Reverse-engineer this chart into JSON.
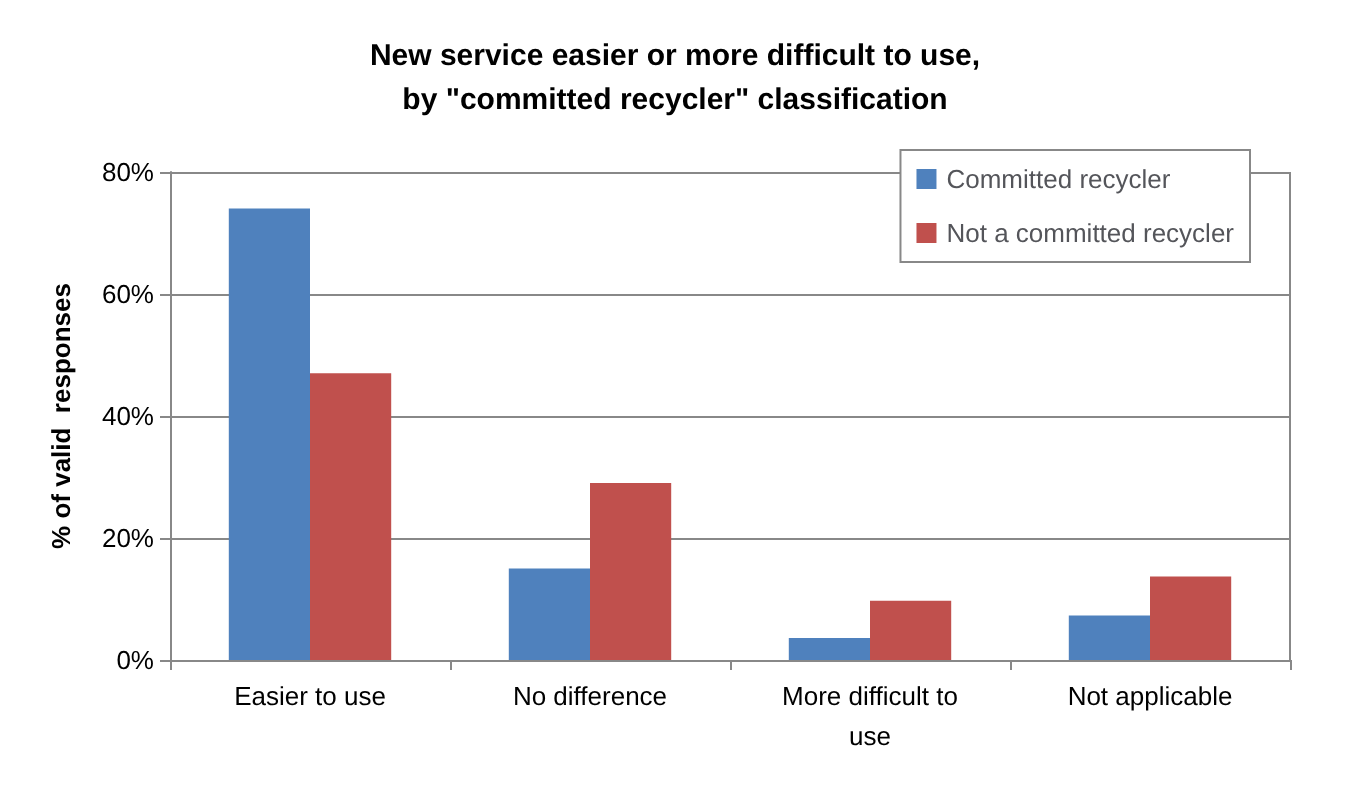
{
  "chart_data": {
    "type": "bar",
    "title": "New service easier or more difficult to use,\nby \"committed recycler\" classification",
    "ylabel": "% of valid  responses",
    "categories": [
      "Easier to use",
      "No difference",
      "More difficult to\nuse",
      "Not applicable"
    ],
    "series": [
      {
        "name": "Committed recycler",
        "color": "#4f81bd",
        "values": [
          74,
          15,
          3.6,
          7.3
        ]
      },
      {
        "name": "Not a committed recycler",
        "color": "#c0504d",
        "values": [
          47,
          29,
          9.7,
          13.7
        ]
      }
    ],
    "ylim": [
      0,
      80
    ],
    "yticks": [
      {
        "value": 0,
        "label": "0%"
      },
      {
        "value": 20,
        "label": "20%"
      },
      {
        "value": 40,
        "label": "40%"
      },
      {
        "value": 60,
        "label": "60%"
      },
      {
        "value": 80,
        "label": "80%"
      }
    ],
    "grid": "y",
    "legend": "top right"
  }
}
